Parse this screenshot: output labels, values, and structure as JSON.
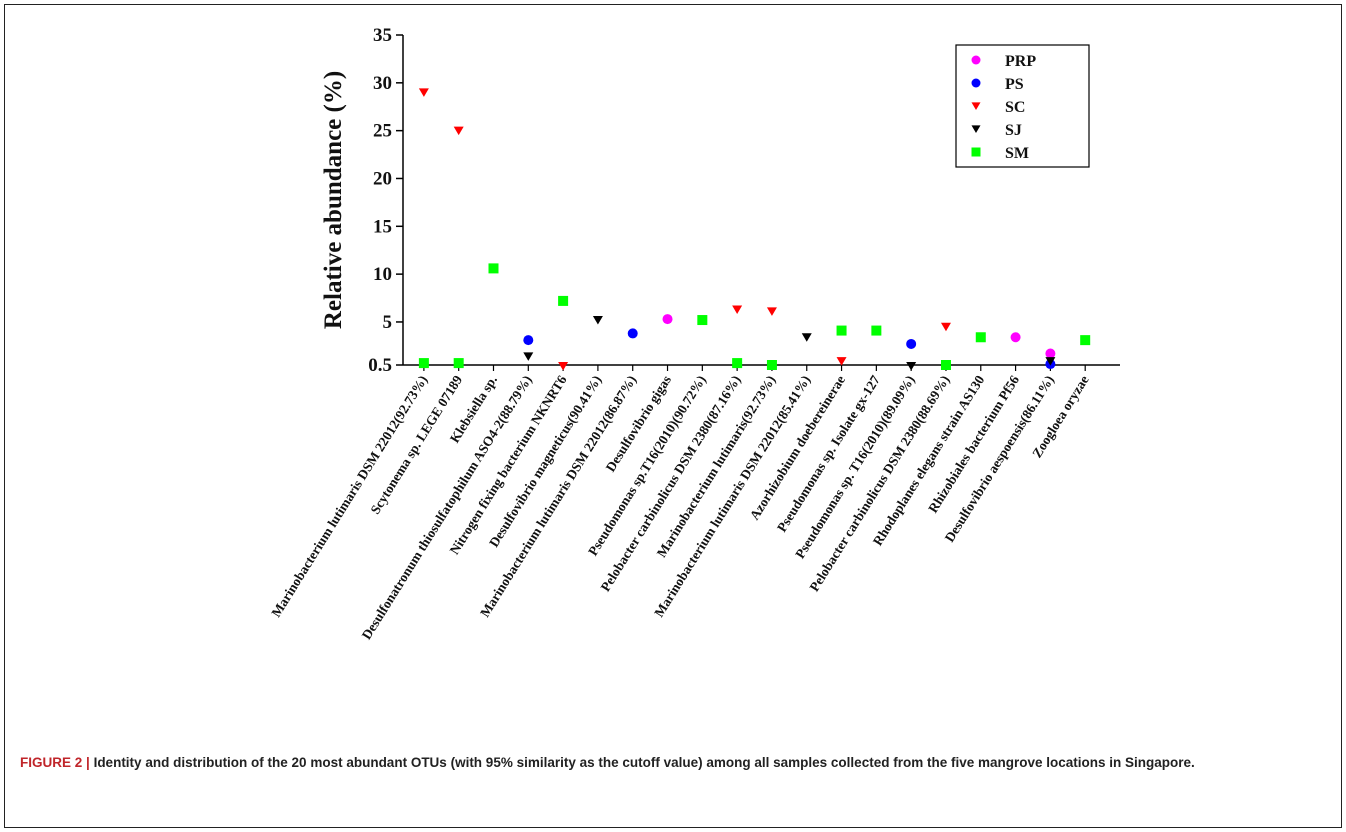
{
  "chart_data": {
    "type": "scatter",
    "ylabel": "Relative abundance (%)",
    "yticks": [
      0.5,
      5,
      10,
      15,
      20,
      25,
      30,
      35
    ],
    "ylim": [
      0.5,
      35
    ],
    "legend_position": "top-right",
    "categories": [
      "Marinobacterium lutimaris DSM 22012(92.73%)",
      "Scytonema sp. LEGE 07189",
      "Klebsiella sp.",
      "Desulfonatronum thiosulfatophilum ASO4-2(88.79%)",
      "Nitrogen fixing bacterium NKNRT6",
      "Desulfovibrio magneticus(90.41%)",
      "Marinobacterium lutimaris DSM 22012(86.87%)",
      "Desulfovibrio gigas",
      "Pseudomonas sp.T16(2010)(90.72%)",
      "Pelobacter carbinolicus DSM 2380(87.16%)",
      "Marinobacterium lutimaris(92.73%)",
      "Marinobacterium lutimaris DSM 22012(85.41%)",
      "Azorhizobium doebereinerae",
      "Pseudomonas sp. Isolate gx-127",
      "Pseudomonas sp. T16(2010)(89.09%)",
      "Pelobacter carbinolicus DSM 2380(88.69%)",
      "Rhodoplanes elegans strain AS130",
      "Rhizobiales bacterium Pf56",
      "Desulfovibrio aespoensis(86.11%)",
      "Zoogloea oryzae"
    ],
    "series": [
      {
        "name": "PRP",
        "marker": "circle",
        "color": "#ff00ff",
        "points": [
          [
            7,
            5.3
          ],
          [
            17,
            3.4
          ],
          [
            18,
            1.7
          ]
        ]
      },
      {
        "name": "PS",
        "marker": "circle",
        "color": "#0000ff",
        "points": [
          [
            3,
            3.1
          ],
          [
            6,
            3.8
          ],
          [
            14,
            2.7
          ],
          [
            18,
            0.6
          ]
        ]
      },
      {
        "name": "SC",
        "marker": "triangle-down",
        "color": "#ff0000",
        "points": [
          [
            0,
            29.0
          ],
          [
            1,
            25.0
          ],
          [
            4,
            0.4
          ],
          [
            9,
            6.3
          ],
          [
            10,
            6.1
          ],
          [
            12,
            0.9
          ],
          [
            15,
            4.5
          ]
        ]
      },
      {
        "name": "SJ",
        "marker": "triangle-down",
        "color": "#000000",
        "points": [
          [
            3,
            1.4
          ],
          [
            5,
            5.2
          ],
          [
            11,
            3.4
          ],
          [
            14,
            0.4
          ],
          [
            18,
            0.9
          ]
        ]
      },
      {
        "name": "SM",
        "marker": "square",
        "color": "#00ff00",
        "points": [
          [
            0,
            0.7
          ],
          [
            1,
            0.7
          ],
          [
            2,
            10.6
          ],
          [
            4,
            7.2
          ],
          [
            8,
            5.2
          ],
          [
            9,
            0.7
          ],
          [
            10,
            0.5
          ],
          [
            12,
            4.1
          ],
          [
            13,
            4.1
          ],
          [
            15,
            0.5
          ],
          [
            16,
            3.4
          ],
          [
            19,
            3.1
          ]
        ]
      }
    ]
  },
  "caption": {
    "label": "FIGURE 2 |",
    "text": "Identity and distribution of the 20 most abundant OTUs (with 95% similarity as the cutoff value) among all samples collected from the five mangrove locations in Singapore."
  }
}
